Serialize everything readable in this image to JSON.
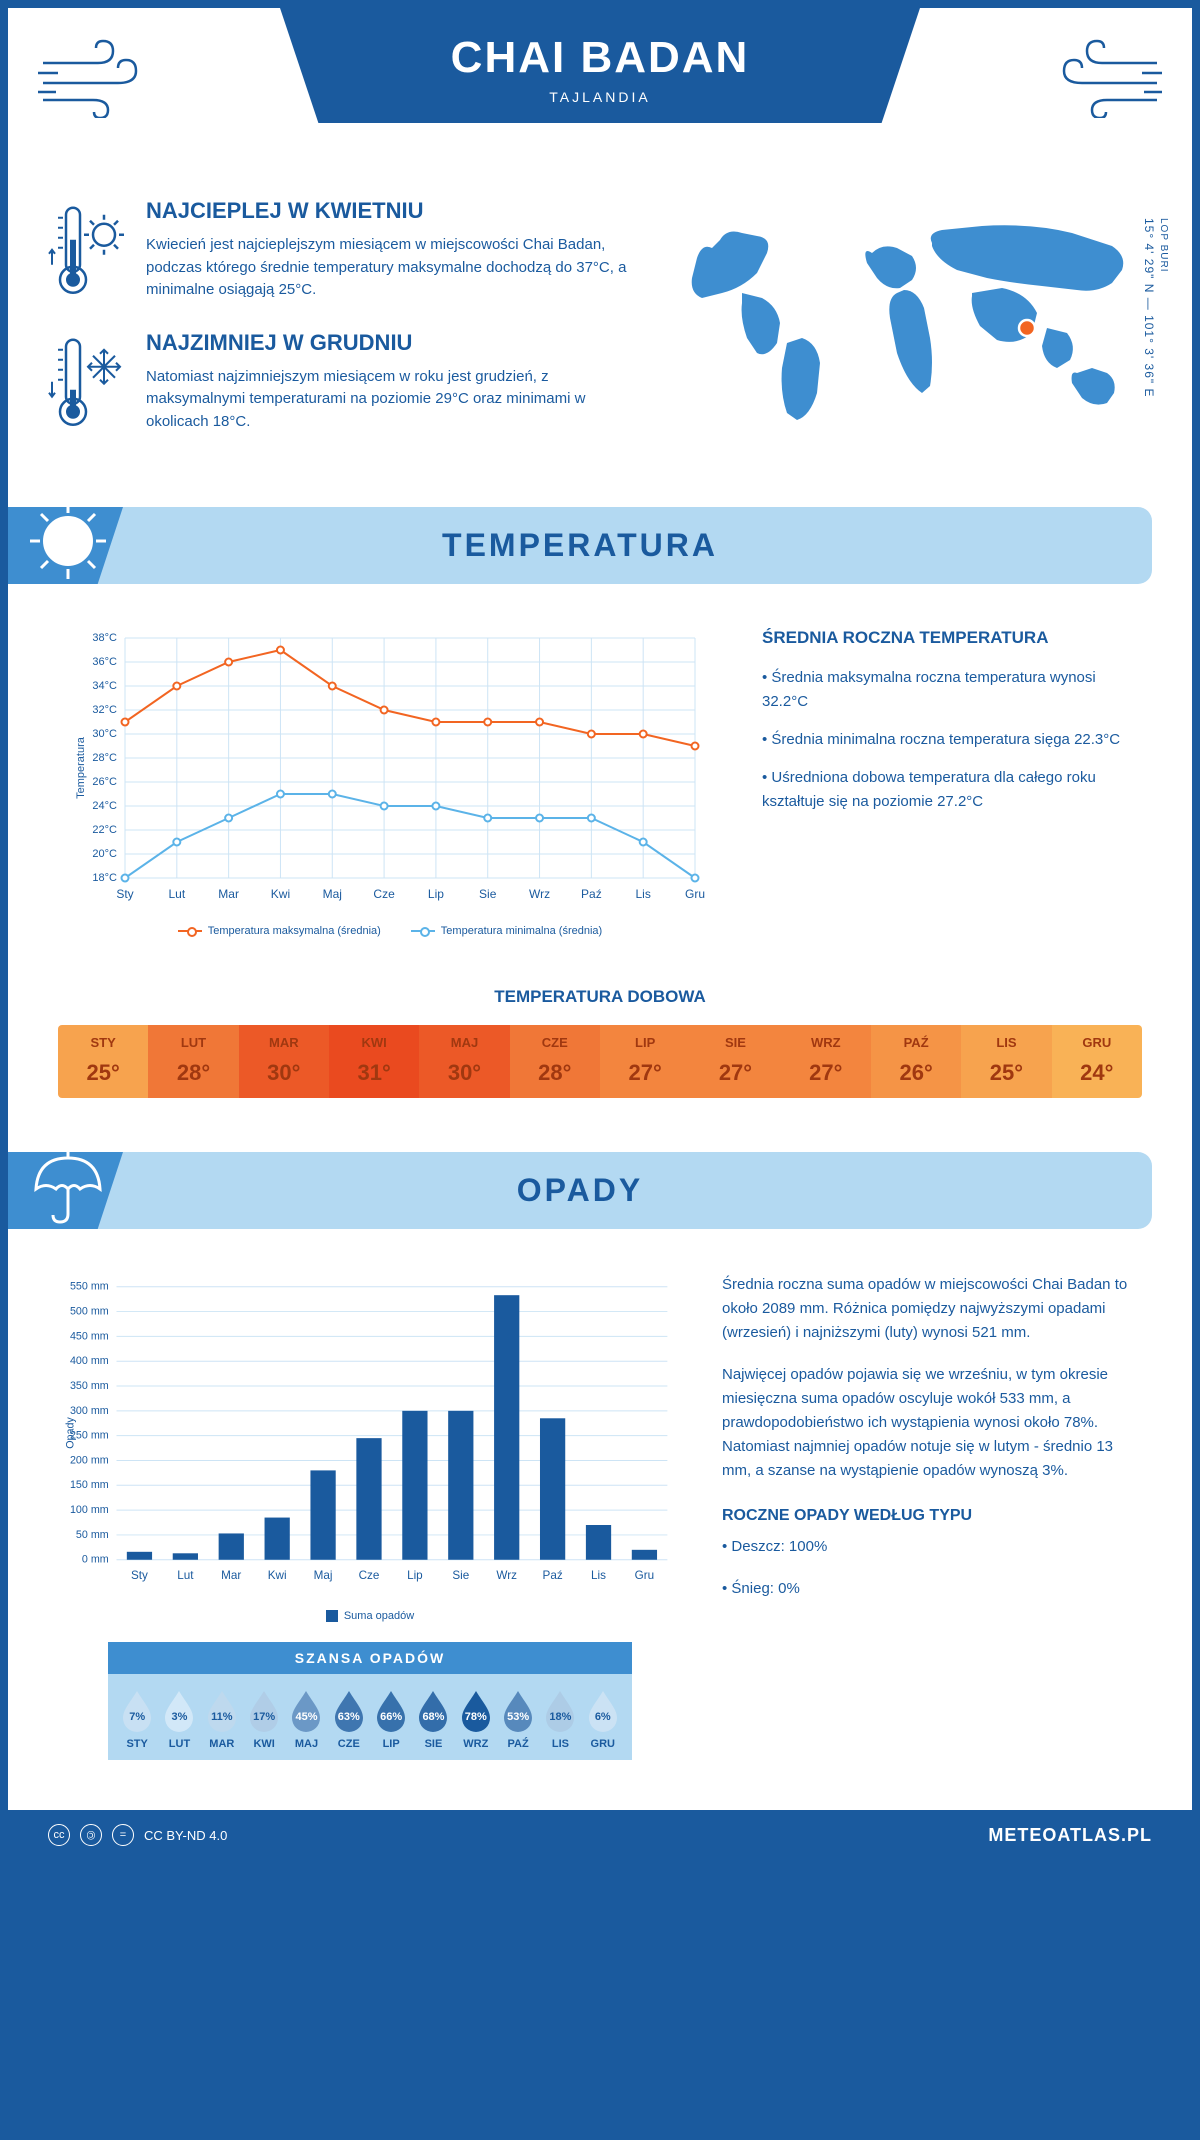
{
  "header": {
    "title": "CHAI BADAN",
    "subtitle": "TAJLANDIA"
  },
  "coords": {
    "lat": "15° 4' 29\" N",
    "lon": "101° 3' 36\" E",
    "region": "LOP BURI"
  },
  "hottest": {
    "title": "NAJCIEPLEJ W KWIETNIU",
    "text": "Kwiecień jest najcieplejszym miesiącem w miejscowości Chai Badan, podczas którego średnie temperatury maksymalne dochodzą do 37°C, a minimalne osiągają 25°C."
  },
  "coldest": {
    "title": "NAJZIMNIEJ W GRUDNIU",
    "text": "Natomiast najzimniejszym miesiącem w roku jest grudzień, z maksymalnymi temperaturami na poziomie 29°C oraz minimami w okolicach 18°C."
  },
  "section_temp": "TEMPERATURA",
  "section_precip": "OPADY",
  "months": [
    "Sty",
    "Lut",
    "Mar",
    "Kwi",
    "Maj",
    "Cze",
    "Lip",
    "Sie",
    "Wrz",
    "Paź",
    "Lis",
    "Gru"
  ],
  "months_upper": [
    "STY",
    "LUT",
    "MAR",
    "KWI",
    "MAJ",
    "CZE",
    "LIP",
    "SIE",
    "WRZ",
    "PAŹ",
    "LIS",
    "GRU"
  ],
  "temp_chart": {
    "y_label": "Temperatura",
    "y_min": 18,
    "y_max": 38,
    "y_step": 2,
    "max_series": [
      31,
      34,
      36,
      37,
      34,
      32,
      31,
      31,
      31,
      30,
      30,
      29
    ],
    "min_series": [
      18,
      21,
      23,
      25,
      25,
      24,
      24,
      23,
      23,
      23,
      21,
      18
    ],
    "max_color": "#f26522",
    "min_color": "#5bb3e8",
    "grid_color": "#cde4f5",
    "legend_max": "Temperatura maksymalna (średnia)",
    "legend_min": "Temperatura minimalna (średnia)"
  },
  "temp_annual": {
    "title": "ŚREDNIA ROCZNA TEMPERATURA",
    "p1": "• Średnia maksymalna roczna temperatura wynosi 32.2°C",
    "p2": "• Średnia minimalna roczna temperatura sięga 22.3°C",
    "p3": "• Uśredniona dobowa temperatura dla całego roku kształtuje się na poziomie 27.2°C"
  },
  "daily_temp": {
    "title": "TEMPERATURA DOBOWA",
    "values": [
      "25°",
      "28°",
      "30°",
      "31°",
      "30°",
      "28°",
      "27°",
      "27°",
      "27°",
      "26°",
      "25°",
      "24°"
    ],
    "raw": [
      25,
      28,
      30,
      31,
      30,
      28,
      27,
      27,
      27,
      26,
      25,
      24
    ],
    "color_min": "#f9b256",
    "color_max": "#ea4a1f",
    "text_color": "#a03810"
  },
  "precip_chart": {
    "y_label": "Opady",
    "y_max": 550,
    "y_step": 50,
    "values": [
      16,
      13,
      53,
      85,
      180,
      245,
      300,
      300,
      533,
      285,
      70,
      20
    ],
    "bar_color": "#1a5a9e",
    "legend": "Suma opadów"
  },
  "precip_text": {
    "p1": "Średnia roczna suma opadów w miejscowości Chai Badan to około 2089 mm. Różnica pomiędzy najwyższymi opadami (wrzesień) i najniższymi (luty) wynosi 521 mm.",
    "p2": "Najwięcej opadów pojawia się we wrześniu, w tym okresie miesięczna suma opadów oscyluje wokół 533 mm, a prawdopodobieństwo ich wystąpienia wynosi około 78%. Natomiast najmniej opadów notuje się w lutym - średnio 13 mm, a szanse na wystąpienie opadów wynoszą 3%."
  },
  "chance": {
    "title": "SZANSA OPADÓW",
    "values": [
      7,
      3,
      11,
      17,
      45,
      63,
      66,
      68,
      78,
      53,
      18,
      6
    ]
  },
  "precip_type": {
    "title": "ROCZNE OPADY WEDŁUG TYPU",
    "rain": "• Deszcz: 100%",
    "snow": "• Śnieg: 0%"
  },
  "footer": {
    "license": "CC BY-ND 4.0",
    "site": "METEOATLAS.PL"
  },
  "colors": {
    "primary": "#1a5a9e",
    "light_blue": "#b3d9f2",
    "mid_blue": "#3e8ed0"
  }
}
